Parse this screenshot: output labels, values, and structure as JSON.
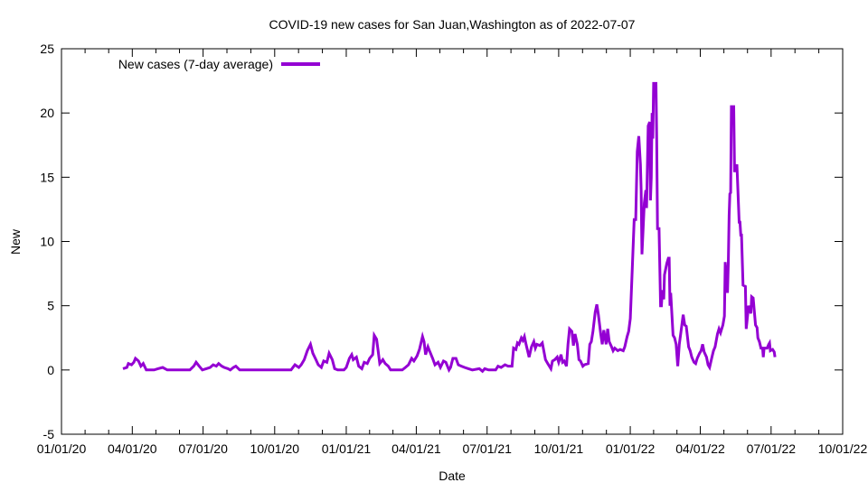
{
  "chart_data": {
    "type": "line",
    "title": "COVID-19 new cases for San Juan,Washington as of 2022-07-07",
    "xlabel": "Date",
    "ylabel": "New",
    "xlim": [
      "2020-01-01",
      "2022-10-01"
    ],
    "ylim": [
      -5,
      25
    ],
    "grid": false,
    "legend_placement": "top-left",
    "x_ticks": [
      "2020-01-01",
      "2020-04-01",
      "2020-07-01",
      "2020-10-01",
      "2021-01-01",
      "2021-04-01",
      "2021-07-01",
      "2021-10-01",
      "2022-01-01",
      "2022-04-01",
      "2022-07-01",
      "2022-10-01"
    ],
    "x_tick_labels": [
      "01/01/20",
      "04/01/20",
      "07/01/20",
      "10/01/20",
      "01/01/21",
      "04/01/21",
      "07/01/21",
      "10/01/21",
      "01/01/22",
      "04/01/22",
      "07/01/22",
      "10/01/22"
    ],
    "y_ticks": [
      -5,
      0,
      5,
      10,
      15,
      20,
      25
    ],
    "y_tick_labels": [
      "-5",
      "0",
      "5",
      "10",
      "15",
      "20",
      "25"
    ],
    "series": [
      {
        "name": "New cases (7-day average)",
        "color": "#9400d3",
        "points": [
          [
            "2020-03-20",
            0.1
          ],
          [
            "2020-03-25",
            0.2
          ],
          [
            "2020-03-27",
            0.5
          ],
          [
            "2020-03-31",
            0.4
          ],
          [
            "2020-04-03",
            0.6
          ],
          [
            "2020-04-05",
            0.9
          ],
          [
            "2020-04-09",
            0.7
          ],
          [
            "2020-04-12",
            0.3
          ],
          [
            "2020-04-15",
            0.5
          ],
          [
            "2020-04-19",
            0
          ],
          [
            "2020-04-29",
            0
          ],
          [
            "2020-05-04",
            0.1
          ],
          [
            "2020-05-10",
            0.2
          ],
          [
            "2020-05-16",
            0
          ],
          [
            "2020-06-14",
            0
          ],
          [
            "2020-06-19",
            0.3
          ],
          [
            "2020-06-22",
            0.6
          ],
          [
            "2020-06-26",
            0.3
          ],
          [
            "2020-06-30",
            0
          ],
          [
            "2020-07-05",
            0.1
          ],
          [
            "2020-07-10",
            0.2
          ],
          [
            "2020-07-14",
            0.4
          ],
          [
            "2020-07-18",
            0.3
          ],
          [
            "2020-07-21",
            0.5
          ],
          [
            "2020-07-25",
            0.3
          ],
          [
            "2020-07-28",
            0.2
          ],
          [
            "2020-08-02",
            0.1
          ],
          [
            "2020-08-05",
            0
          ],
          [
            "2020-08-09",
            0.2
          ],
          [
            "2020-08-12",
            0.3
          ],
          [
            "2020-08-17",
            0
          ],
          [
            "2020-10-22",
            0
          ],
          [
            "2020-10-27",
            0.4
          ],
          [
            "2020-11-01",
            0.2
          ],
          [
            "2020-11-04",
            0.4
          ],
          [
            "2020-11-08",
            0.8
          ],
          [
            "2020-11-12",
            1.5
          ],
          [
            "2020-11-16",
            2.0
          ],
          [
            "2020-11-19",
            1.3
          ],
          [
            "2020-11-23",
            0.8
          ],
          [
            "2020-11-26",
            0.4
          ],
          [
            "2020-11-30",
            0.2
          ],
          [
            "2020-12-03",
            0.7
          ],
          [
            "2020-12-07",
            0.6
          ],
          [
            "2020-12-10",
            1.3
          ],
          [
            "2020-12-14",
            0.8
          ],
          [
            "2020-12-17",
            0.1
          ],
          [
            "2020-12-21",
            0
          ],
          [
            "2020-12-29",
            0
          ],
          [
            "2021-01-01",
            0.2
          ],
          [
            "2021-01-05",
            0.9
          ],
          [
            "2021-01-08",
            1.2
          ],
          [
            "2021-01-10",
            0.8
          ],
          [
            "2021-01-14",
            1.0
          ],
          [
            "2021-01-17",
            0.3
          ],
          [
            "2021-01-21",
            0.1
          ],
          [
            "2021-01-24",
            0.6
          ],
          [
            "2021-01-28",
            0.5
          ],
          [
            "2021-01-31",
            0.9
          ],
          [
            "2021-02-04",
            1.2
          ],
          [
            "2021-02-06",
            2.7
          ],
          [
            "2021-02-09",
            2.4
          ],
          [
            "2021-02-11",
            1.5
          ],
          [
            "2021-02-13",
            0.5
          ],
          [
            "2021-02-17",
            0.8
          ],
          [
            "2021-02-20",
            0.5
          ],
          [
            "2021-02-24",
            0.3
          ],
          [
            "2021-02-27",
            0
          ],
          [
            "2021-03-14",
            0
          ],
          [
            "2021-03-18",
            0.2
          ],
          [
            "2021-03-22",
            0.4
          ],
          [
            "2021-03-26",
            0.9
          ],
          [
            "2021-03-29",
            0.7
          ],
          [
            "2021-04-02",
            1.1
          ],
          [
            "2021-04-05",
            1.6
          ],
          [
            "2021-04-09",
            2.6
          ],
          [
            "2021-04-11",
            2.2
          ],
          [
            "2021-04-13",
            1.2
          ],
          [
            "2021-04-16",
            1.8
          ],
          [
            "2021-04-18",
            1.5
          ],
          [
            "2021-04-22",
            0.9
          ],
          [
            "2021-04-25",
            0.4
          ],
          [
            "2021-04-29",
            0.6
          ],
          [
            "2021-05-02",
            0.2
          ],
          [
            "2021-05-06",
            0.7
          ],
          [
            "2021-05-09",
            0.6
          ],
          [
            "2021-05-13",
            0
          ],
          [
            "2021-05-15",
            0.2
          ],
          [
            "2021-05-18",
            0.9
          ],
          [
            "2021-05-22",
            0.9
          ],
          [
            "2021-05-25",
            0.4
          ],
          [
            "2021-05-29",
            0.3
          ],
          [
            "2021-06-02",
            0.2
          ],
          [
            "2021-06-07",
            0.1
          ],
          [
            "2021-06-12",
            0
          ],
          [
            "2021-06-21",
            0.1
          ],
          [
            "2021-06-25",
            -0.1
          ],
          [
            "2021-06-28",
            0.1
          ],
          [
            "2021-07-03",
            0
          ],
          [
            "2021-07-12",
            0
          ],
          [
            "2021-07-15",
            0.3
          ],
          [
            "2021-07-19",
            0.2
          ],
          [
            "2021-07-24",
            0.4
          ],
          [
            "2021-07-28",
            0.3
          ],
          [
            "2021-08-02",
            0.3
          ],
          [
            "2021-08-04",
            1.7
          ],
          [
            "2021-08-07",
            1.6
          ],
          [
            "2021-08-09",
            2.1
          ],
          [
            "2021-08-11",
            2.0
          ],
          [
            "2021-08-14",
            2.5
          ],
          [
            "2021-08-16",
            2.3
          ],
          [
            "2021-08-18",
            2.6
          ],
          [
            "2021-08-20",
            2.0
          ],
          [
            "2021-08-24",
            1.0
          ],
          [
            "2021-08-27",
            1.8
          ],
          [
            "2021-08-30",
            2.2
          ],
          [
            "2021-09-01",
            1.7
          ],
          [
            "2021-09-03",
            2.0
          ],
          [
            "2021-09-07",
            1.9
          ],
          [
            "2021-09-10",
            2.1
          ],
          [
            "2021-09-14",
            0.8
          ],
          [
            "2021-09-17",
            0.5
          ],
          [
            "2021-09-21",
            0.1
          ],
          [
            "2021-09-23",
            0.7
          ],
          [
            "2021-09-26",
            0.8
          ],
          [
            "2021-09-29",
            1.0
          ],
          [
            "2021-10-01",
            0.6
          ],
          [
            "2021-10-04",
            1.2
          ],
          [
            "2021-10-06",
            0.6
          ],
          [
            "2021-10-08",
            0.7
          ],
          [
            "2021-10-11",
            0.3
          ],
          [
            "2021-10-13",
            2.0
          ],
          [
            "2021-10-15",
            3.2
          ],
          [
            "2021-10-18",
            3.0
          ],
          [
            "2021-10-20",
            1.9
          ],
          [
            "2021-10-22",
            2.8
          ],
          [
            "2021-10-25",
            2.0
          ],
          [
            "2021-10-27",
            0.8
          ],
          [
            "2021-10-29",
            0.7
          ],
          [
            "2021-11-01",
            0.3
          ],
          [
            "2021-11-03",
            0.4
          ],
          [
            "2021-11-08",
            0.5
          ],
          [
            "2021-11-10",
            2.0
          ],
          [
            "2021-11-12",
            2.2
          ],
          [
            "2021-11-14",
            3.0
          ],
          [
            "2021-11-17",
            4.5
          ],
          [
            "2021-11-19",
            5.1
          ],
          [
            "2021-11-21",
            4.3
          ],
          [
            "2021-11-24",
            2.8
          ],
          [
            "2021-11-26",
            2.0
          ],
          [
            "2021-11-28",
            3.1
          ],
          [
            "2021-12-01",
            2.0
          ],
          [
            "2021-12-03",
            3.2
          ],
          [
            "2021-12-05",
            2.2
          ],
          [
            "2021-12-08",
            1.8
          ],
          [
            "2021-12-10",
            1.5
          ],
          [
            "2021-12-12",
            1.7
          ],
          [
            "2021-12-16",
            1.5
          ],
          [
            "2021-12-19",
            1.6
          ],
          [
            "2021-12-23",
            1.5
          ],
          [
            "2021-12-25",
            1.8
          ],
          [
            "2021-12-28",
            2.6
          ],
          [
            "2021-12-30",
            3.0
          ],
          [
            "2022-01-01",
            4.0
          ],
          [
            "2022-01-03",
            7.0
          ],
          [
            "2022-01-06",
            11.7
          ],
          [
            "2022-01-08",
            11.7
          ],
          [
            "2022-01-10",
            17.0
          ],
          [
            "2022-01-12",
            18.2
          ],
          [
            "2022-01-14",
            16.0
          ],
          [
            "2022-01-15",
            14.0
          ],
          [
            "2022-01-16",
            9.0
          ],
          [
            "2022-01-19",
            13.0
          ],
          [
            "2022-01-21",
            14.0
          ],
          [
            "2022-01-22",
            12.6
          ],
          [
            "2022-01-24",
            19.0
          ],
          [
            "2022-01-26",
            19.3
          ],
          [
            "2022-01-27",
            13.2
          ],
          [
            "2022-01-28",
            15.0
          ],
          [
            "2022-01-29",
            20.0
          ],
          [
            "2022-01-30",
            18.0
          ],
          [
            "2022-01-31",
            22.3
          ],
          [
            "2022-02-03",
            22.3
          ],
          [
            "2022-02-04",
            18.0
          ],
          [
            "2022-02-05",
            11.0
          ],
          [
            "2022-02-07",
            11.0
          ],
          [
            "2022-02-09",
            5.0
          ],
          [
            "2022-02-10",
            5.0
          ],
          [
            "2022-02-11",
            6.0
          ],
          [
            "2022-02-12",
            6.2
          ],
          [
            "2022-02-13",
            5.5
          ],
          [
            "2022-02-14",
            7.4
          ],
          [
            "2022-02-17",
            8.3
          ],
          [
            "2022-02-19",
            8.7
          ],
          [
            "2022-02-20",
            8.7
          ],
          [
            "2022-02-21",
            5.0
          ],
          [
            "2022-02-22",
            6.0
          ],
          [
            "2022-02-25",
            2.7
          ],
          [
            "2022-02-27",
            2.5
          ],
          [
            "2022-03-01",
            2.0
          ],
          [
            "2022-03-03",
            0.3
          ],
          [
            "2022-03-05",
            2.0
          ],
          [
            "2022-03-07",
            2.9
          ],
          [
            "2022-03-10",
            4.3
          ],
          [
            "2022-03-12",
            3.5
          ],
          [
            "2022-03-14",
            3.4
          ],
          [
            "2022-03-17",
            1.8
          ],
          [
            "2022-03-19",
            1.5
          ],
          [
            "2022-03-21",
            1.0
          ],
          [
            "2022-03-24",
            0.6
          ],
          [
            "2022-03-26",
            0.5
          ],
          [
            "2022-03-28",
            0.9
          ],
          [
            "2022-03-31",
            1.3
          ],
          [
            "2022-04-02",
            1.5
          ],
          [
            "2022-04-04",
            2.0
          ],
          [
            "2022-04-06",
            1.4
          ],
          [
            "2022-04-09",
            1.0
          ],
          [
            "2022-04-11",
            0.4
          ],
          [
            "2022-04-13",
            0.2
          ],
          [
            "2022-04-16",
            1.0
          ],
          [
            "2022-04-18",
            1.5
          ],
          [
            "2022-04-20",
            1.8
          ],
          [
            "2022-04-23",
            2.8
          ],
          [
            "2022-04-25",
            3.2
          ],
          [
            "2022-04-27",
            2.9
          ],
          [
            "2022-04-30",
            3.5
          ],
          [
            "2022-05-02",
            4.2
          ],
          [
            "2022-05-03",
            8.4
          ],
          [
            "2022-05-06",
            6.0
          ],
          [
            "2022-05-07",
            8.3
          ],
          [
            "2022-05-08",
            12.0
          ],
          [
            "2022-05-09",
            13.7
          ],
          [
            "2022-05-10",
            13.8
          ],
          [
            "2022-05-11",
            20.5
          ],
          [
            "2022-05-14",
            20.5
          ],
          [
            "2022-05-15",
            15.5
          ],
          [
            "2022-05-16",
            15.5
          ],
          [
            "2022-05-18",
            16.0
          ],
          [
            "2022-05-21",
            11.5
          ],
          [
            "2022-05-22",
            11.5
          ],
          [
            "2022-05-23",
            10.5
          ],
          [
            "2022-05-24",
            10.5
          ],
          [
            "2022-05-26",
            6.6
          ],
          [
            "2022-05-29",
            6.5
          ],
          [
            "2022-05-30",
            3.2
          ],
          [
            "2022-05-31",
            3.8
          ],
          [
            "2022-06-02",
            5.0
          ],
          [
            "2022-06-05",
            4.4
          ],
          [
            "2022-06-06",
            5.7
          ],
          [
            "2022-06-08",
            5.6
          ],
          [
            "2022-06-11",
            3.5
          ],
          [
            "2022-06-13",
            3.3
          ],
          [
            "2022-06-14",
            2.5
          ],
          [
            "2022-06-16",
            2.2
          ],
          [
            "2022-06-18",
            1.7
          ],
          [
            "2022-06-20",
            1.7
          ],
          [
            "2022-06-21",
            1.0
          ],
          [
            "2022-06-22",
            1.7
          ],
          [
            "2022-06-26",
            1.7
          ],
          [
            "2022-06-28",
            2.0
          ],
          [
            "2022-06-29",
            2.1
          ],
          [
            "2022-06-30",
            1.5
          ],
          [
            "2022-07-03",
            1.6
          ],
          [
            "2022-07-05",
            1.4
          ],
          [
            "2022-07-06",
            1.0
          ]
        ]
      }
    ]
  }
}
